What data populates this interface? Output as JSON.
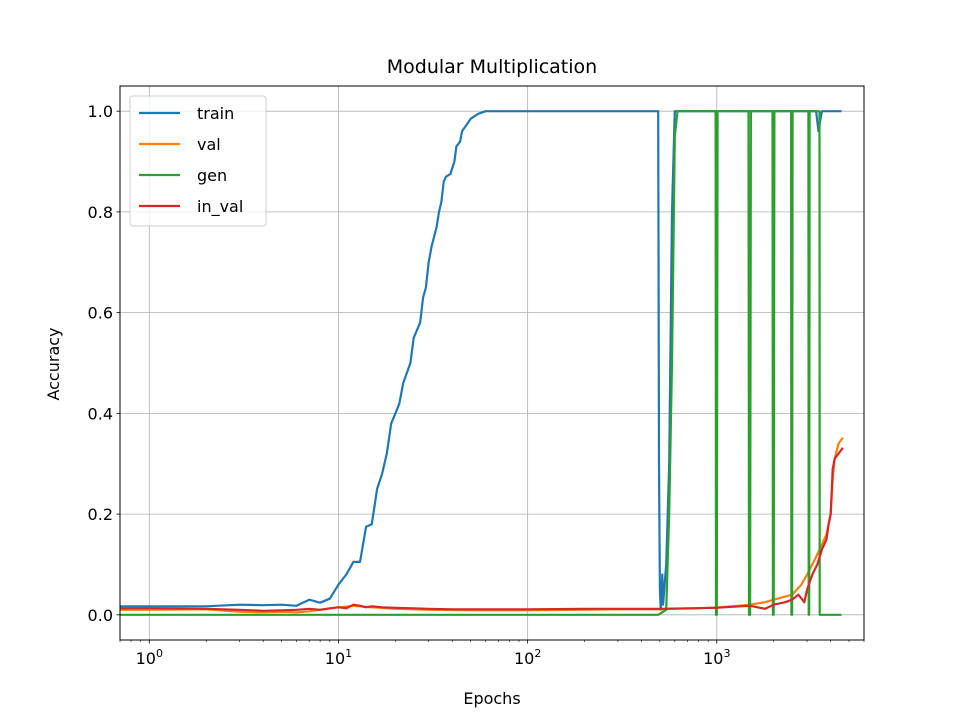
{
  "chart_data": {
    "type": "line",
    "title": "Modular Multiplication",
    "xlabel": "Epochs",
    "ylabel": "Accuracy",
    "xscale": "log",
    "xlim": [
      0.7,
      6000
    ],
    "ylim": [
      -0.05,
      1.05
    ],
    "xticks": [
      {
        "value": 1,
        "base": "10",
        "exp": "0"
      },
      {
        "value": 10,
        "base": "10",
        "exp": "1"
      },
      {
        "value": 100,
        "base": "10",
        "exp": "2"
      },
      {
        "value": 1000,
        "base": "10",
        "exp": "3"
      }
    ],
    "yticks": [
      {
        "value": 0.0,
        "label": "0.0"
      },
      {
        "value": 0.2,
        "label": "0.2"
      },
      {
        "value": 0.4,
        "label": "0.4"
      },
      {
        "value": 0.6,
        "label": "0.6"
      },
      {
        "value": 0.8,
        "label": "0.8"
      },
      {
        "value": 1.0,
        "label": "1.0"
      }
    ],
    "grid": true,
    "legend_position": "top-left",
    "series": [
      {
        "name": "train",
        "color": "#1f77b4",
        "points": [
          [
            0.7,
            0.017
          ],
          [
            1,
            0.017
          ],
          [
            2,
            0.017
          ],
          [
            3,
            0.02
          ],
          [
            4,
            0.019
          ],
          [
            5,
            0.02
          ],
          [
            6,
            0.018
          ],
          [
            7,
            0.03
          ],
          [
            8,
            0.024
          ],
          [
            9,
            0.032
          ],
          [
            10,
            0.06
          ],
          [
            11,
            0.08
          ],
          [
            12,
            0.105
          ],
          [
            13,
            0.105
          ],
          [
            14,
            0.175
          ],
          [
            15,
            0.18
          ],
          [
            16,
            0.25
          ],
          [
            17,
            0.28
          ],
          [
            18,
            0.32
          ],
          [
            19,
            0.38
          ],
          [
            20,
            0.4
          ],
          [
            21,
            0.42
          ],
          [
            22,
            0.46
          ],
          [
            24,
            0.5
          ],
          [
            25,
            0.55
          ],
          [
            27,
            0.58
          ],
          [
            28,
            0.63
          ],
          [
            29,
            0.65
          ],
          [
            30,
            0.7
          ],
          [
            31,
            0.73
          ],
          [
            33,
            0.77
          ],
          [
            34,
            0.8
          ],
          [
            35,
            0.82
          ],
          [
            36,
            0.86
          ],
          [
            37,
            0.87
          ],
          [
            39,
            0.875
          ],
          [
            41,
            0.9
          ],
          [
            42,
            0.93
          ],
          [
            44,
            0.94
          ],
          [
            45,
            0.96
          ],
          [
            48,
            0.975
          ],
          [
            50,
            0.985
          ],
          [
            55,
            0.995
          ],
          [
            60,
            1.0
          ],
          [
            100,
            1.0
          ],
          [
            200,
            1.0
          ],
          [
            490,
            1.0
          ],
          [
            495,
            0.3
          ],
          [
            500,
            0.05
          ],
          [
            505,
            0.01
          ],
          [
            510,
            0.03
          ],
          [
            515,
            0.08
          ],
          [
            520,
            0.02
          ],
          [
            530,
            0.06
          ],
          [
            540,
            0.1
          ],
          [
            560,
            0.3
          ],
          [
            580,
            0.8
          ],
          [
            600,
            1.0
          ],
          [
            1000,
            1.0
          ],
          [
            3000,
            1.0
          ],
          [
            3350,
            1.0
          ],
          [
            3450,
            0.96
          ],
          [
            3550,
            0.99
          ],
          [
            3600,
            1.0
          ],
          [
            4500,
            1.0
          ]
        ]
      },
      {
        "name": "val",
        "color": "#ff7f0e",
        "points": [
          [
            0.7,
            0.01
          ],
          [
            1,
            0.01
          ],
          [
            2,
            0.011
          ],
          [
            3,
            0.006
          ],
          [
            4,
            0.005
          ],
          [
            5,
            0.006
          ],
          [
            6,
            0.005
          ],
          [
            7,
            0.007
          ],
          [
            8,
            0.01
          ],
          [
            10,
            0.015
          ],
          [
            12,
            0.018
          ],
          [
            15,
            0.015
          ],
          [
            20,
            0.012
          ],
          [
            30,
            0.01
          ],
          [
            50,
            0.009
          ],
          [
            100,
            0.009
          ],
          [
            200,
            0.01
          ],
          [
            300,
            0.011
          ],
          [
            500,
            0.011
          ],
          [
            600,
            0.012
          ],
          [
            800,
            0.013
          ],
          [
            1000,
            0.015
          ],
          [
            1200,
            0.017
          ],
          [
            1500,
            0.02
          ],
          [
            1800,
            0.025
          ],
          [
            2000,
            0.03
          ],
          [
            2500,
            0.04
          ],
          [
            2800,
            0.06
          ],
          [
            3000,
            0.08
          ],
          [
            3300,
            0.11
          ],
          [
            3600,
            0.14
          ],
          [
            3800,
            0.16
          ],
          [
            4000,
            0.2
          ],
          [
            4100,
            0.27
          ],
          [
            4200,
            0.31
          ],
          [
            4400,
            0.34
          ],
          [
            4600,
            0.35
          ]
        ]
      },
      {
        "name": "gen",
        "color": "#2ca02c",
        "points": [
          [
            0.7,
            0.0
          ],
          [
            1,
            0.0
          ],
          [
            10,
            0.0
          ],
          [
            100,
            0.0
          ],
          [
            490,
            0.0
          ],
          [
            540,
            0.01
          ],
          [
            560,
            0.2
          ],
          [
            580,
            0.5
          ],
          [
            600,
            0.95
          ],
          [
            620,
            1.0
          ],
          [
            985,
            1.0
          ],
          [
            990,
            0.0
          ],
          [
            1000,
            0.0
          ],
          [
            1010,
            1.0
          ],
          [
            1470,
            1.0
          ],
          [
            1480,
            0.0
          ],
          [
            1500,
            0.0
          ],
          [
            1515,
            1.0
          ],
          [
            1970,
            1.0
          ],
          [
            1980,
            0.0
          ],
          [
            2000,
            0.0
          ],
          [
            2015,
            1.0
          ],
          [
            2470,
            1.0
          ],
          [
            2480,
            0.0
          ],
          [
            2500,
            0.0
          ],
          [
            2515,
            1.0
          ],
          [
            3050,
            1.0
          ],
          [
            3060,
            0.0
          ],
          [
            3080,
            0.0
          ],
          [
            3095,
            1.0
          ],
          [
            3490,
            1.0
          ],
          [
            3500,
            0.0
          ],
          [
            4500,
            0.0
          ]
        ]
      },
      {
        "name": "in_val",
        "color": "#d62728",
        "points": [
          [
            0.7,
            0.013
          ],
          [
            1,
            0.013
          ],
          [
            2,
            0.012
          ],
          [
            3,
            0.01
          ],
          [
            4,
            0.008
          ],
          [
            5,
            0.009
          ],
          [
            6,
            0.01
          ],
          [
            7,
            0.012
          ],
          [
            8,
            0.01
          ],
          [
            9,
            0.013
          ],
          [
            10,
            0.015
          ],
          [
            11,
            0.013
          ],
          [
            12,
            0.02
          ],
          [
            13,
            0.018
          ],
          [
            14,
            0.015
          ],
          [
            15,
            0.017
          ],
          [
            17,
            0.015
          ],
          [
            20,
            0.014
          ],
          [
            25,
            0.013
          ],
          [
            30,
            0.012
          ],
          [
            40,
            0.011
          ],
          [
            50,
            0.011
          ],
          [
            100,
            0.011
          ],
          [
            200,
            0.012
          ],
          [
            500,
            0.012
          ],
          [
            700,
            0.013
          ],
          [
            1000,
            0.014
          ],
          [
            1200,
            0.016
          ],
          [
            1500,
            0.018
          ],
          [
            1800,
            0.012
          ],
          [
            2000,
            0.02
          ],
          [
            2300,
            0.025
          ],
          [
            2500,
            0.03
          ],
          [
            2700,
            0.04
          ],
          [
            2900,
            0.025
          ],
          [
            3000,
            0.05
          ],
          [
            3200,
            0.08
          ],
          [
            3400,
            0.1
          ],
          [
            3600,
            0.13
          ],
          [
            3800,
            0.15
          ],
          [
            3900,
            0.18
          ],
          [
            4000,
            0.2
          ],
          [
            4100,
            0.29
          ],
          [
            4200,
            0.31
          ],
          [
            4400,
            0.32
          ],
          [
            4600,
            0.33
          ]
        ]
      }
    ]
  }
}
